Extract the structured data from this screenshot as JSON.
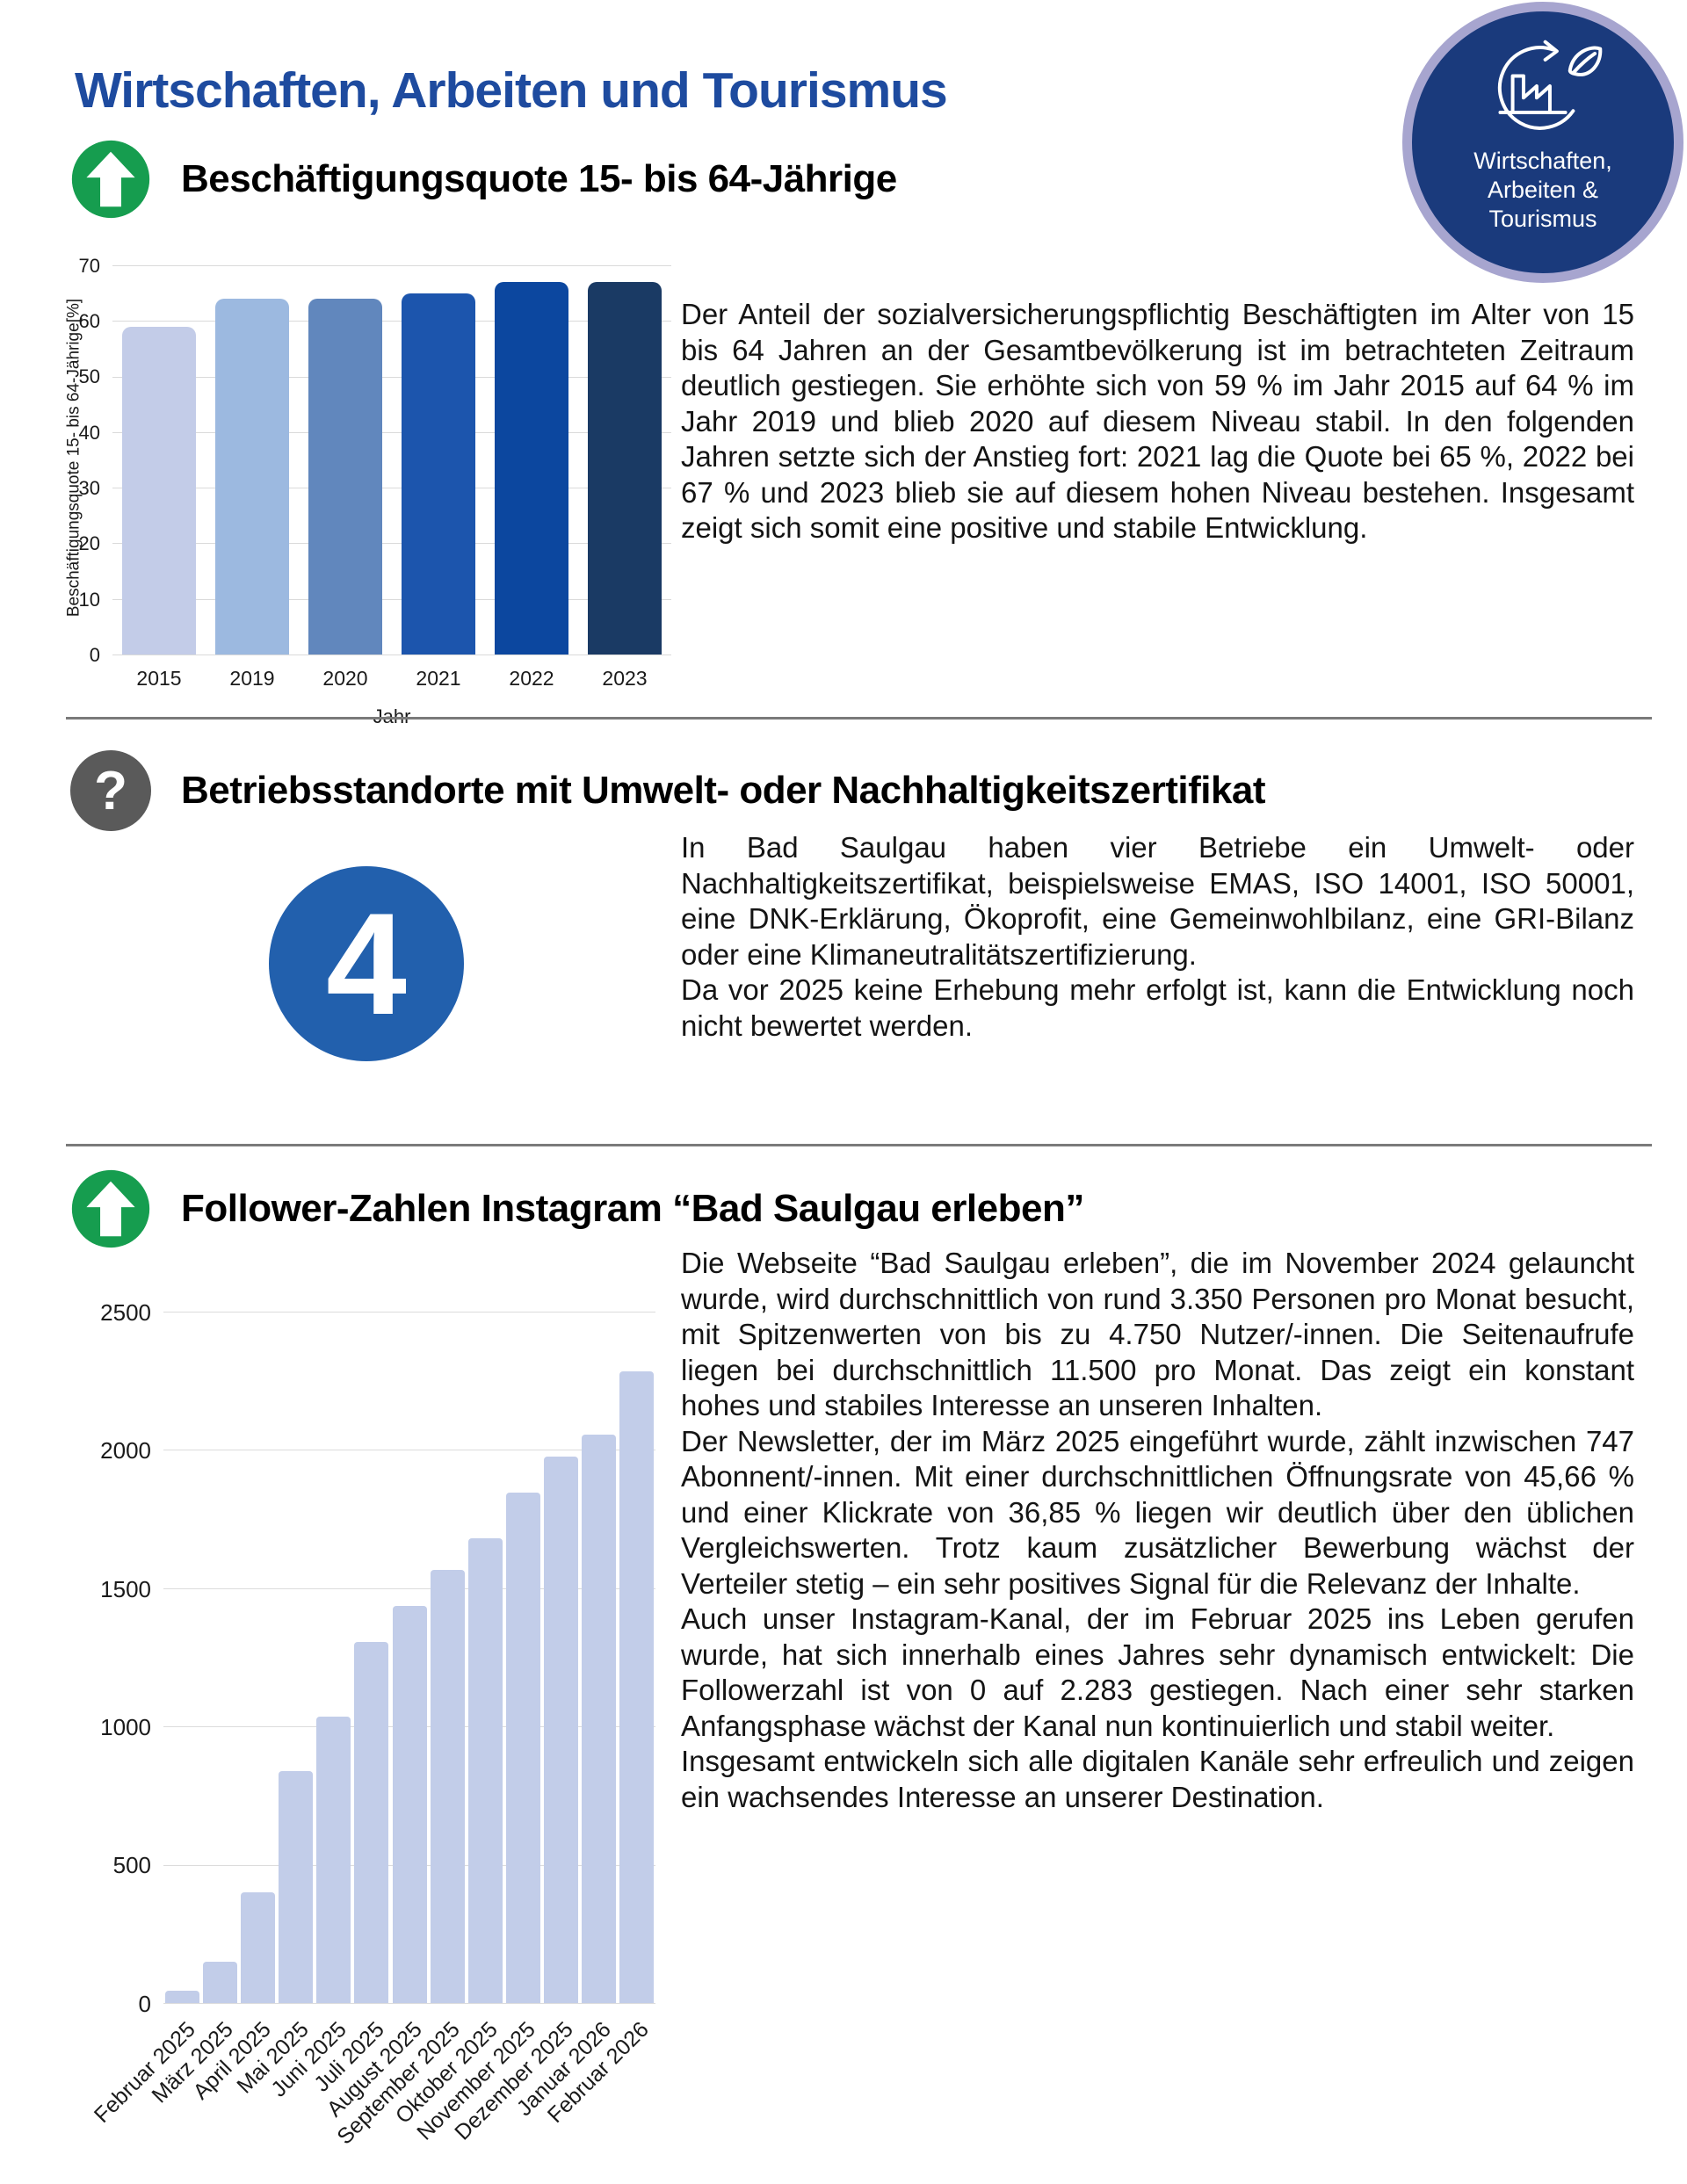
{
  "header": {
    "title": "Wirtschaften, Arbeiten und Tourismus"
  },
  "badge": {
    "icon": "factory-leaf-cycle",
    "lines": [
      "Wirtschaften,",
      "Arbeiten &",
      "Tourismus"
    ],
    "bg_color": "#1a3a7c",
    "ring_color": "#a7a5cf"
  },
  "icons": {
    "up_indicator": "arrow-up-circle",
    "question_indicator": "question-mark-circle",
    "question_glyph": "?",
    "up_color": "#169d4f",
    "question_color": "#5a5a5a"
  },
  "colors": {
    "title_blue": "#1e4b9f",
    "big_number_blue": "#2260ad",
    "divider_gray": "#7a7a7a"
  },
  "sections": [
    {
      "id": "beschaeftigungsquote",
      "indicator": "up",
      "heading": "Beschäftigungsquote 15- bis 64-Jährige",
      "paragraphs": [
        "Der Anteil der sozialversicherungspflichtig Beschäftigten im Alter von 15 bis 64 Jahren an der Gesamtbevölkerung ist im betrachteten Zeitraum deutlich gestiegen. Sie erhöhte sich von 59 % im Jahr 2015 auf 64 % im Jahr 2019 und blieb 2020 auf diesem Niveau stabil. In den folgenden Jahren setzte sich der Anstieg fort: 2021 lag die Quote bei 65 %, 2022 bei 67 % und 2023 blieb sie auf diesem hohen Niveau bestehen. Insgesamt zeigt sich somit eine positive und stabile Entwicklung."
      ]
    },
    {
      "id": "zertifikate",
      "indicator": "question",
      "heading": "Betriebsstandorte mit Umwelt- oder Nachhaltigkeitszertifikat",
      "big_number": "4",
      "paragraphs": [
        "In Bad Saulgau haben vier Betriebe ein Umwelt- oder Nachhaltigkeitszertifikat, beispielsweise EMAS, ISO 14001, ISO 50001, eine DNK-Erklärung, Ökoprofit, eine Gemeinwohlbilanz, eine GRI-Bilanz oder eine Klimaneutralitätszertifizierung.",
        "Da vor 2025 keine Erhebung mehr erfolgt ist, kann die Entwicklung noch nicht bewertet werden."
      ]
    },
    {
      "id": "instagram",
      "indicator": "up",
      "heading": "Follower-Zahlen Instagram “Bad Saulgau erleben”",
      "paragraphs": [
        "Die Webseite “Bad Saulgau erleben”, die im November 2024 gelauncht wurde, wird durchschnittlich von rund 3.350 Personen pro Monat besucht, mit Spitzenwerten von bis zu 4.750 Nutzer/-innen. Die Seitenaufrufe liegen bei durchschnittlich 11.500 pro Monat. Das zeigt ein konstant hohes und stabiles Interesse an unseren Inhalten.",
        "Der Newsletter, der im März 2025 eingeführt wurde, zählt inzwischen 747 Abonnent/-innen. Mit einer durchschnittlichen Öffnungsrate von 45,66 % und einer Klickrate von 36,85 % liegen wir deutlich über den üblichen Vergleichswerten. Trotz kaum zusätzlicher Bewerbung wächst der Verteiler stetig – ein sehr positives Signal für die Relevanz der Inhalte.",
        "Auch unser Instagram-Kanal, der im Februar 2025 ins Leben gerufen wurde, hat sich innerhalb eines Jahres sehr dynamisch entwickelt: Die Followerzahl ist von 0 auf 2.283 gestiegen. Nach einer sehr starken Anfangsphase wächst der Kanal nun kontinuierlich und stabil weiter.",
        "Insgesamt entwickeln sich alle digitalen Kanäle sehr erfreulich und zeigen ein wachsendes Interesse an unserer Destination."
      ]
    }
  ],
  "chart_data": [
    {
      "type": "bar",
      "title": "",
      "categories": [
        "2015",
        "2019",
        "2020",
        "2021",
        "2022",
        "2023"
      ],
      "values": [
        59,
        64,
        64,
        65,
        67,
        67
      ],
      "bar_colors": [
        "#c3cce8",
        "#9cb9e0",
        "#6187bd",
        "#1c55ad",
        "#0c479f",
        "#1a3a64"
      ],
      "xlabel": "Jahr",
      "ylabel": "Beschäftigungsquote 15- bis 64-Jährige[%]",
      "ylim": [
        0,
        70
      ],
      "yticks": [
        0,
        10,
        20,
        30,
        40,
        50,
        60,
        70
      ],
      "grid": true,
      "legend": "none"
    },
    {
      "type": "bar",
      "title": "",
      "categories": [
        "Februar 2025",
        "März 2025",
        "April 2025",
        "Mai 2025",
        "Juni 2025",
        "Juli 2025",
        "August 2025",
        "September 2025",
        "Oktober 2025",
        "November 2025",
        "Dezember 2025",
        "Januar 2026",
        "Februar 2026"
      ],
      "values": [
        45,
        150,
        400,
        840,
        1035,
        1305,
        1435,
        1565,
        1680,
        1845,
        1975,
        2055,
        2283
      ],
      "bar_color": "#c2cde9",
      "xlabel": "",
      "ylabel": "",
      "ylim": [
        0,
        2500
      ],
      "yticks": [
        0,
        500,
        1000,
        1500,
        2000,
        2500
      ],
      "xtick_rotation": -45,
      "grid": true,
      "legend": "none"
    }
  ]
}
